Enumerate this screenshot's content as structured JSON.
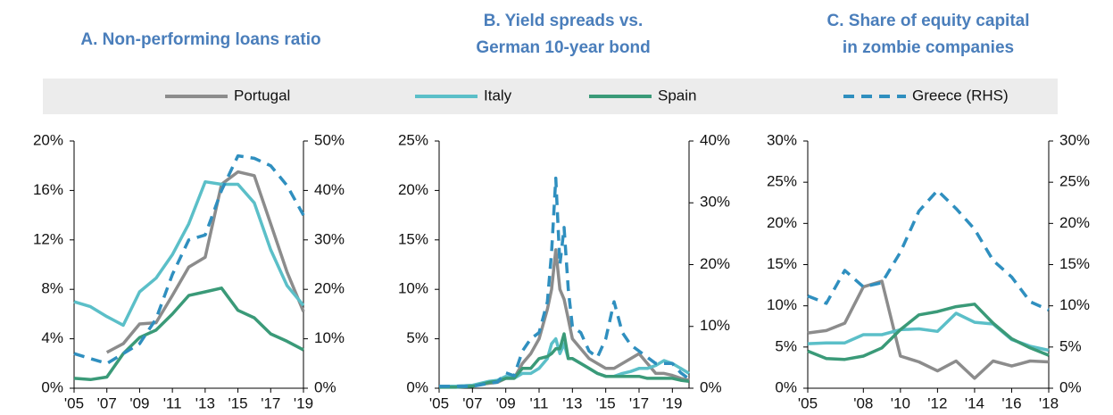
{
  "chart_data": [
    {
      "type": "line",
      "title": [
        "A. Non-performing loans ratio"
      ],
      "x": [
        2005,
        2006,
        2007,
        2008,
        2009,
        2010,
        2011,
        2012,
        2013,
        2014,
        2015,
        2016,
        2017,
        2018,
        2019
      ],
      "xlim": [
        2005,
        2019
      ],
      "xticks": [
        {
          "value": 2005,
          "label": "'05"
        },
        {
          "value": 2007,
          "label": "'07"
        },
        {
          "value": 2009,
          "label": "'09"
        },
        {
          "value": 2011,
          "label": "'11"
        },
        {
          "value": 2013,
          "label": "'13"
        },
        {
          "value": 2015,
          "label": "'15"
        },
        {
          "value": 2017,
          "label": "'17"
        },
        {
          "value": 2019,
          "label": "'19"
        }
      ],
      "ylim": [
        0,
        20
      ],
      "yticks": [
        {
          "value": 0,
          "label": "0%"
        },
        {
          "value": 4,
          "label": "4%"
        },
        {
          "value": 8,
          "label": "8%"
        },
        {
          "value": 12,
          "label": "12%"
        },
        {
          "value": 16,
          "label": "16%"
        },
        {
          "value": 20,
          "label": "20%"
        }
      ],
      "y2lim": [
        0,
        50
      ],
      "y2ticks": [
        {
          "value": 0,
          "label": "0%"
        },
        {
          "value": 10,
          "label": "10%"
        },
        {
          "value": 20,
          "label": "20%"
        },
        {
          "value": 30,
          "label": "30%"
        },
        {
          "value": 40,
          "label": "40%"
        },
        {
          "value": 50,
          "label": "50%"
        }
      ],
      "series": [
        {
          "name": "Portugal",
          "color": "#8c8c8c",
          "linestyle": "solid",
          "values": [
            null,
            null,
            2.9,
            3.6,
            5.2,
            5.3,
            7.5,
            9.8,
            10.6,
            16.5,
            17.5,
            17.2,
            13.3,
            9.4,
            6.2
          ]
        },
        {
          "name": "Italy",
          "color": "#5bbfc8",
          "linestyle": "solid",
          "values": [
            7.0,
            6.6,
            5.8,
            5.1,
            7.8,
            8.9,
            10.8,
            13.3,
            16.7,
            16.5,
            16.5,
            15.0,
            11.2,
            8.3,
            6.7
          ]
        },
        {
          "name": "Spain",
          "color": "#3a9a78",
          "linestyle": "solid",
          "values": [
            0.8,
            0.7,
            0.9,
            2.8,
            4.1,
            4.7,
            6.0,
            7.5,
            7.8,
            8.1,
            6.3,
            5.7,
            4.4,
            3.8,
            3.1
          ]
        },
        {
          "name": "Greece (RHS)",
          "color": "#2f8fbf",
          "linestyle": "dashed",
          "axis": "y2",
          "values": [
            7,
            6,
            5,
            7,
            9,
            14,
            23,
            30,
            31,
            40,
            47,
            46.5,
            45,
            41,
            35
          ]
        }
      ]
    },
    {
      "type": "line",
      "title": [
        "B. Yield spreads vs.",
        "German 10-year bond"
      ],
      "x": [
        2005,
        2006,
        2007,
        2008,
        2008.5,
        2009,
        2009.5,
        2010,
        2010.5,
        2011,
        2011.5,
        2011.75,
        2012,
        2012.25,
        2012.5,
        2012.75,
        2013,
        2013.5,
        2014,
        2014.5,
        2015,
        2015.5,
        2016,
        2016.5,
        2017,
        2017.5,
        2018,
        2018.5,
        2019,
        2019.5,
        2020
      ],
      "xlim": [
        2005,
        2020
      ],
      "xticks": [
        {
          "value": 2005,
          "label": "'05"
        },
        {
          "value": 2007,
          "label": "'07"
        },
        {
          "value": 2009,
          "label": "'09"
        },
        {
          "value": 2011,
          "label": "'11"
        },
        {
          "value": 2013,
          "label": "'13"
        },
        {
          "value": 2015,
          "label": "'15"
        },
        {
          "value": 2017,
          "label": "'17"
        },
        {
          "value": 2019,
          "label": "'19"
        }
      ],
      "ylim": [
        0,
        25
      ],
      "yticks": [
        {
          "value": 0,
          "label": "0%"
        },
        {
          "value": 5,
          "label": "5%"
        },
        {
          "value": 10,
          "label": "10%"
        },
        {
          "value": 15,
          "label": "15%"
        },
        {
          "value": 20,
          "label": "20%"
        },
        {
          "value": 25,
          "label": "25%"
        }
      ],
      "y2lim": [
        0,
        40
      ],
      "y2ticks": [
        {
          "value": 0,
          "label": "0%"
        },
        {
          "value": 10,
          "label": "10%"
        },
        {
          "value": 20,
          "label": "20%"
        },
        {
          "value": 30,
          "label": "30%"
        },
        {
          "value": 40,
          "label": "40%"
        }
      ],
      "series": [
        {
          "color": "#8c8c8c",
          "linestyle": "solid",
          "values": [
            0.1,
            0.2,
            0.3,
            0.5,
            0.6,
            1.0,
            1.0,
            2.5,
            3.5,
            5,
            8,
            10,
            14,
            10,
            9,
            7,
            5,
            4,
            3,
            2.5,
            2,
            2,
            2.5,
            3,
            3.5,
            2.5,
            1.5,
            1.5,
            1.3,
            1.0,
            0.8
          ]
        },
        {
          "color": "#5bbfc8",
          "linestyle": "solid",
          "values": [
            0.2,
            0.2,
            0.3,
            0.7,
            0.8,
            1.2,
            1,
            1.5,
            1.5,
            2,
            3,
            4.5,
            5,
            3.5,
            4.5,
            3,
            3,
            2.5,
            2,
            1.5,
            1.2,
            1.2,
            1.5,
            1.7,
            2,
            2,
            2.3,
            2.8,
            2.5,
            2,
            1.5
          ]
        },
        {
          "color": "#3a9a78",
          "linestyle": "solid",
          "values": [
            0.1,
            0.1,
            0.2,
            0.6,
            0.7,
            1,
            1,
            2,
            2,
            3,
            3.2,
            3.5,
            4,
            4,
            5.5,
            3,
            3,
            2.5,
            2,
            1.5,
            1.2,
            1.2,
            1.2,
            1.2,
            1.2,
            1,
            1,
            1,
            1,
            0.8,
            0.7
          ]
        },
        {
          "color": "#2f8fbf",
          "linestyle": "dashed",
          "axis": "y2",
          "values": [
            0.3,
            0.3,
            0.3,
            0.8,
            1,
            2.5,
            2,
            6,
            8,
            9,
            14,
            22,
            34,
            20,
            26,
            16,
            10,
            9,
            6,
            5,
            8,
            14,
            9,
            7,
            6,
            5,
            4,
            4,
            4,
            2.5,
            1.5
          ]
        }
      ]
    },
    {
      "type": "line",
      "title": [
        "C. Share of equity capital",
        "in zombie companies"
      ],
      "x": [
        2005,
        2006,
        2007,
        2008,
        2009,
        2010,
        2011,
        2012,
        2013,
        2014,
        2015,
        2016,
        2017,
        2018
      ],
      "xlim": [
        2005,
        2018
      ],
      "xticks": [
        {
          "value": 2005,
          "label": "'05"
        },
        {
          "value": 2008,
          "label": "'08"
        },
        {
          "value": 2010,
          "label": "'10"
        },
        {
          "value": 2012,
          "label": "'12"
        },
        {
          "value": 2014,
          "label": "'14"
        },
        {
          "value": 2016,
          "label": "'16"
        },
        {
          "value": 2018,
          "label": "'18"
        }
      ],
      "ylim": [
        0,
        30
      ],
      "yticks": [
        {
          "value": 0,
          "label": "0%"
        },
        {
          "value": 5,
          "label": "5%"
        },
        {
          "value": 10,
          "label": "10%"
        },
        {
          "value": 15,
          "label": "15%"
        },
        {
          "value": 20,
          "label": "20%"
        },
        {
          "value": 25,
          "label": "25%"
        },
        {
          "value": 30,
          "label": "30%"
        }
      ],
      "y2lim": [
        0,
        30
      ],
      "y2ticks": [
        {
          "value": 0,
          "label": "0%"
        },
        {
          "value": 5,
          "label": "5%"
        },
        {
          "value": 10,
          "label": "10%"
        },
        {
          "value": 15,
          "label": "15%"
        },
        {
          "value": 20,
          "label": "20%"
        },
        {
          "value": 25,
          "label": "25%"
        },
        {
          "value": 30,
          "label": "30%"
        }
      ],
      "series": [
        {
          "color": "#8c8c8c",
          "linestyle": "solid",
          "values": [
            6.7,
            7,
            7.9,
            12.3,
            13,
            3.9,
            3.2,
            2.1,
            3.3,
            1.2,
            3.3,
            2.7,
            3.3,
            3.2
          ]
        },
        {
          "color": "#5bbfc8",
          "linestyle": "solid",
          "values": [
            5.4,
            5.5,
            5.5,
            6.5,
            6.5,
            7.1,
            7.2,
            6.9,
            9.1,
            8,
            7.8,
            5.9,
            5.1,
            4.6
          ]
        },
        {
          "color": "#3a9a78",
          "linestyle": "solid",
          "values": [
            4.5,
            3.6,
            3.5,
            3.9,
            4.9,
            7.1,
            8.9,
            9.3,
            9.9,
            10.2,
            7.9,
            6.0,
            4.9,
            4.0
          ]
        },
        {
          "color": "#2f8fbf",
          "linestyle": "dashed",
          "axis": "y2",
          "values": [
            11.2,
            10.3,
            14.3,
            12.3,
            12.8,
            16.5,
            21.5,
            24,
            21.8,
            19.3,
            15.5,
            13.5,
            10.5,
            9.5
          ]
        }
      ]
    }
  ]
}
